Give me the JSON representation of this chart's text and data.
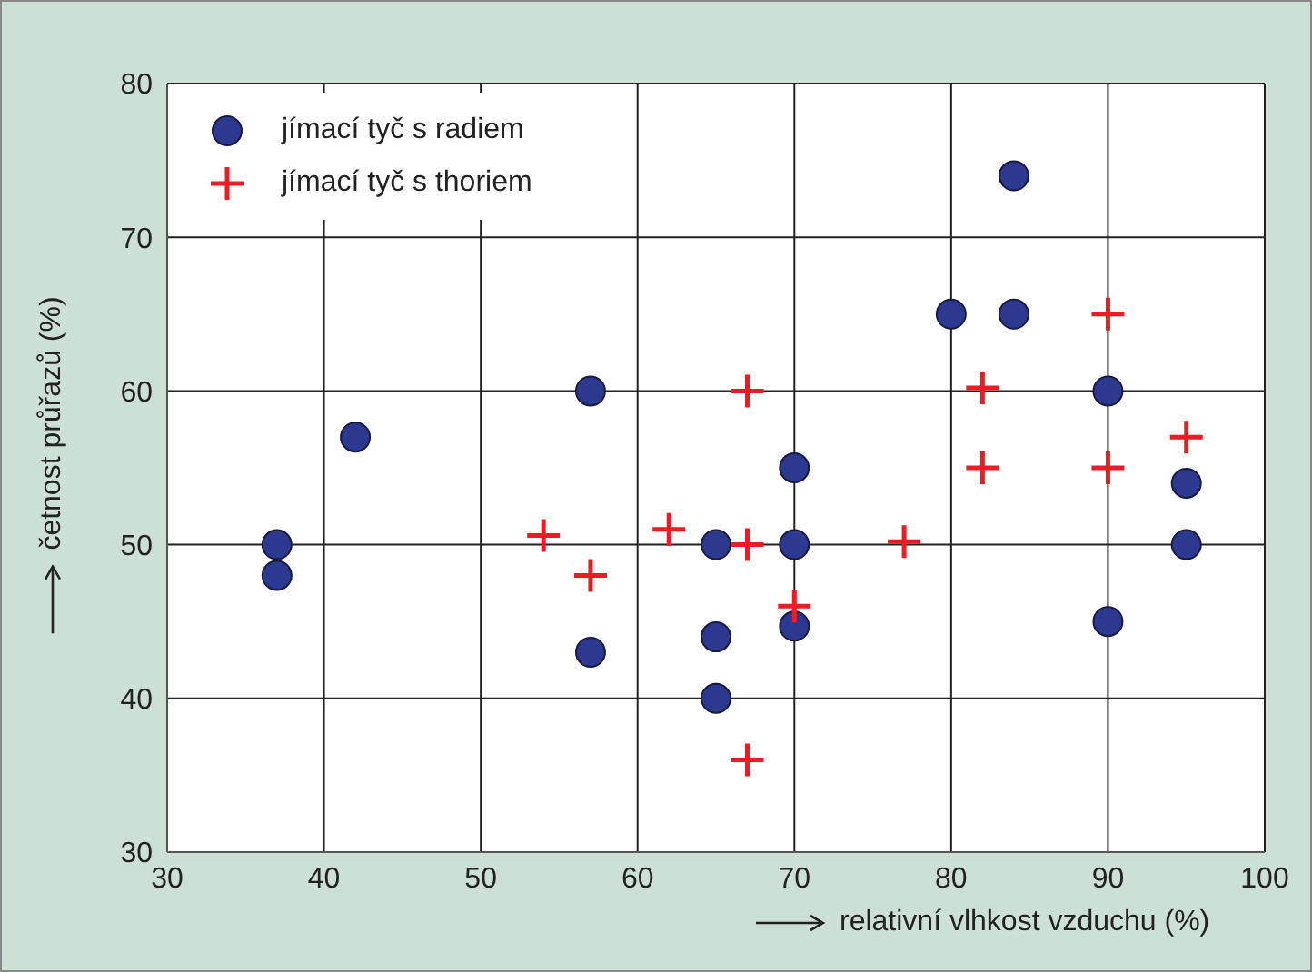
{
  "chart_data": {
    "type": "scatter",
    "xlabel": "relativní vlhkost vzduchu (%)",
    "ylabel": "četnost průřazů (%)",
    "xlim": [
      30,
      100
    ],
    "xticks": [
      30,
      40,
      50,
      60,
      70,
      80,
      90,
      100
    ],
    "ylim": [
      30,
      80
    ],
    "yticks": [
      30,
      40,
      50,
      60,
      70,
      80
    ],
    "grid": true,
    "legend": "top left",
    "series": [
      {
        "name": "jímací tyč s radiem",
        "color": "#2b3990",
        "marker": "circle",
        "x": [
          37,
          37,
          42,
          57,
          57,
          65,
          65,
          65,
          70,
          70,
          70,
          80,
          84,
          84,
          90,
          90,
          95,
          95
        ],
        "values": [
          50,
          48,
          57,
          60,
          43,
          50,
          44,
          40,
          55,
          50,
          44.7,
          65,
          74,
          65,
          60,
          45,
          54,
          50
        ]
      },
      {
        "name": "jímací tyč s thoriem",
        "color": "#ed1c24",
        "marker": "cross",
        "x": [
          54,
          57,
          62,
          67,
          67,
          67,
          70,
          77,
          82,
          82,
          90,
          90,
          95
        ],
        "values": [
          50.6,
          48,
          51,
          60,
          50,
          36,
          46,
          50.2,
          60.2,
          55,
          65,
          55,
          57
        ]
      }
    ]
  }
}
